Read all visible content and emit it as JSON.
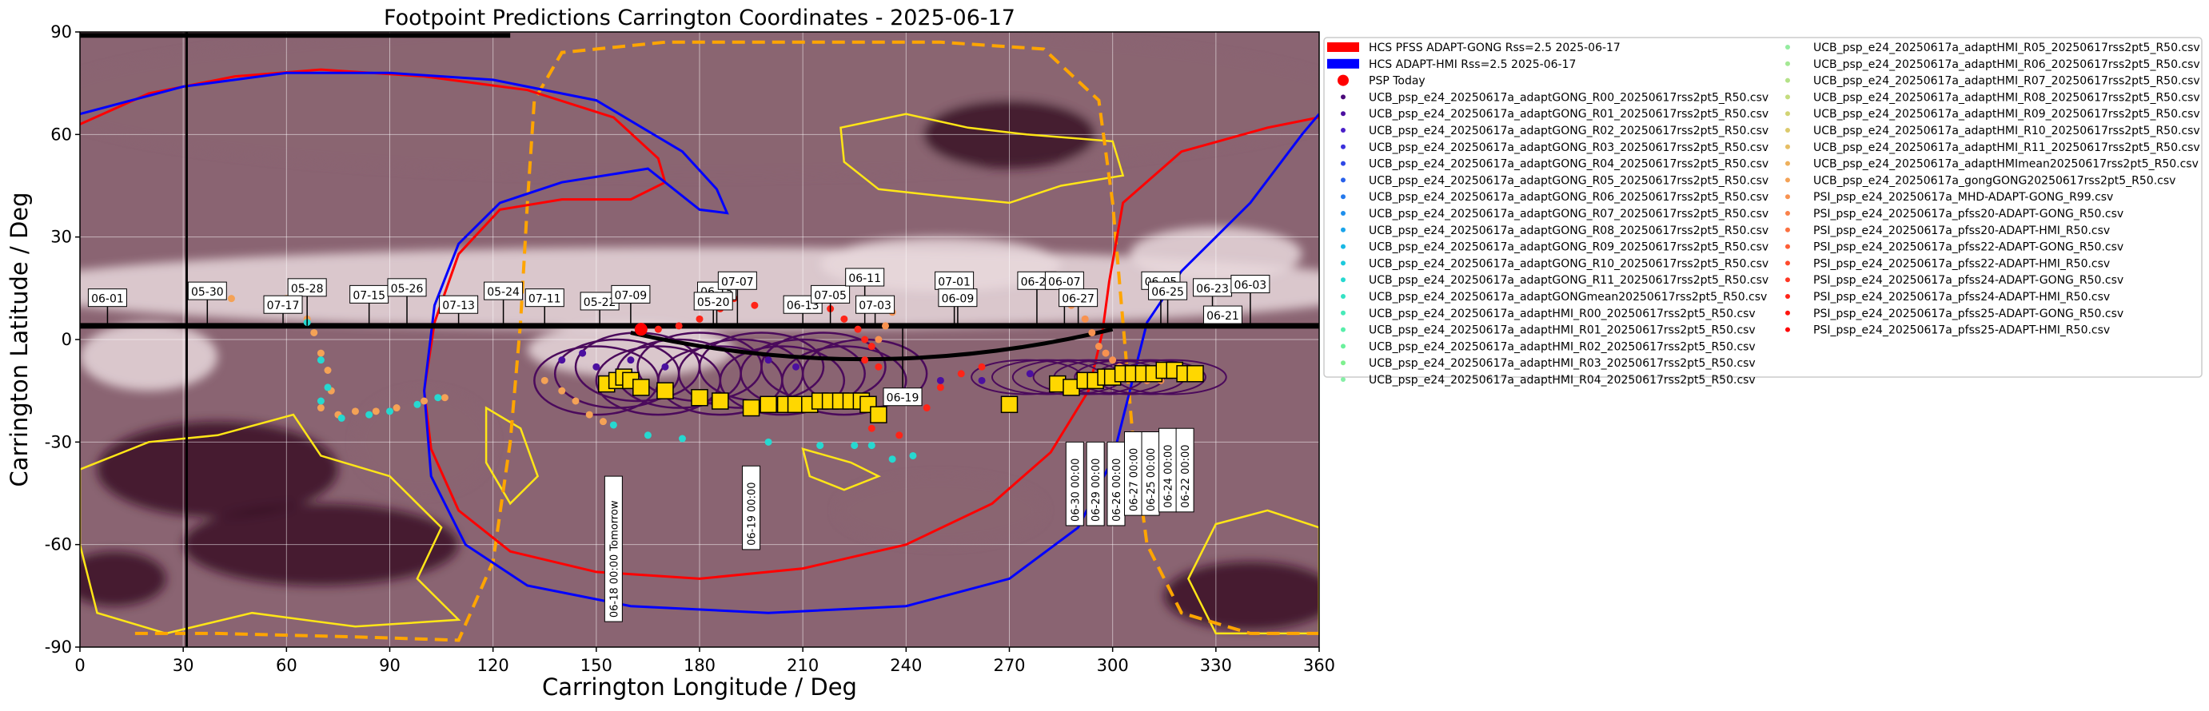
{
  "chart_data": {
    "type": "scatter",
    "title": "Footpoint Predictions Carrington Coordinates - 2025-06-17",
    "xlabel": "Carrington Longitude / Deg",
    "ylabel": "Carrington Latitude / Deg",
    "xlim": [
      0,
      360
    ],
    "ylim": [
      -90,
      90
    ],
    "xticks": [
      0,
      30,
      60,
      90,
      120,
      150,
      180,
      210,
      240,
      270,
      300,
      330,
      360
    ],
    "yticks": [
      -90,
      -60,
      -30,
      0,
      30,
      60,
      90
    ],
    "grid": true,
    "legend_position": "outside-right",
    "colors": {
      "background_dark": "#3a0f24",
      "background_mid": "#8a6472",
      "background_light": "#e8d8dc",
      "contour": "#ffe617",
      "hcs_gong": "#ff0000",
      "hcs_hmi": "#0000ff",
      "psp_today": "#ff0000",
      "trajectory": "#000000",
      "orbit_dashed": "#ffa500",
      "model_loops": "#4b0a5c",
      "markers": "#ffd700"
    },
    "psp_today": {
      "lon": 163,
      "lat": 3
    },
    "track_latitude": 4,
    "hcs_gong_line": [
      [
        0,
        63
      ],
      [
        20,
        72
      ],
      [
        45,
        77
      ],
      [
        70,
        79
      ],
      [
        100,
        77
      ],
      [
        130,
        73
      ],
      [
        155,
        65
      ],
      [
        168,
        53
      ],
      [
        170,
        46
      ],
      [
        160,
        41
      ],
      [
        140,
        41
      ],
      [
        122,
        38
      ],
      [
        110,
        25
      ],
      [
        103,
        5
      ],
      [
        100,
        -15
      ],
      [
        102,
        -32
      ],
      [
        110,
        -50
      ],
      [
        125,
        -62
      ],
      [
        150,
        -68
      ],
      [
        180,
        -70
      ],
      [
        210,
        -67
      ],
      [
        240,
        -60
      ],
      [
        265,
        -48
      ],
      [
        282,
        -33
      ],
      [
        293,
        -15
      ],
      [
        297,
        2
      ],
      [
        299,
        17
      ],
      [
        303,
        40
      ],
      [
        320,
        55
      ],
      [
        345,
        62
      ],
      [
        360,
        65
      ]
    ],
    "hcs_hmi_line": [
      [
        0,
        66
      ],
      [
        30,
        74
      ],
      [
        60,
        78
      ],
      [
        90,
        78
      ],
      [
        120,
        76
      ],
      [
        150,
        70
      ],
      [
        175,
        55
      ],
      [
        185,
        44
      ],
      [
        188,
        37
      ],
      [
        180,
        38
      ],
      [
        165,
        50
      ],
      [
        140,
        46
      ],
      [
        122,
        40
      ],
      [
        110,
        28
      ],
      [
        103,
        10
      ],
      [
        100,
        -15
      ],
      [
        102,
        -40
      ],
      [
        112,
        -60
      ],
      [
        130,
        -72
      ],
      [
        160,
        -78
      ],
      [
        200,
        -80
      ],
      [
        240,
        -78
      ],
      [
        270,
        -70
      ],
      [
        290,
        -55
      ],
      [
        300,
        -35
      ],
      [
        305,
        -15
      ],
      [
        310,
        5
      ],
      [
        320,
        20
      ],
      [
        340,
        40
      ],
      [
        355,
        60
      ],
      [
        360,
        66
      ]
    ],
    "orbit_dashed_line": [
      [
        16,
        -86
      ],
      [
        40,
        -86
      ],
      [
        80,
        -87
      ],
      [
        110,
        -88
      ],
      [
        120,
        -65
      ],
      [
        125,
        -30
      ],
      [
        128,
        5
      ],
      [
        130,
        40
      ],
      [
        132,
        70
      ],
      [
        140,
        84
      ],
      [
        170,
        87
      ],
      [
        210,
        87
      ],
      [
        250,
        87
      ],
      [
        280,
        85
      ],
      [
        296,
        70
      ],
      [
        300,
        40
      ],
      [
        303,
        5
      ],
      [
        306,
        -30
      ],
      [
        310,
        -60
      ],
      [
        320,
        -80
      ],
      [
        340,
        -86
      ],
      [
        360,
        -86
      ]
    ],
    "date_labels_top": [
      {
        "lon": 8,
        "lat": 12,
        "text": "06-01"
      },
      {
        "lon": 37,
        "lat": 14,
        "text": "05-30"
      },
      {
        "lon": 66,
        "lat": 15,
        "text": "05-28"
      },
      {
        "lon": 59,
        "lat": 10,
        "text": "07-17"
      },
      {
        "lon": 84,
        "lat": 13,
        "text": "07-15"
      },
      {
        "lon": 95,
        "lat": 15,
        "text": "05-26"
      },
      {
        "lon": 110,
        "lat": 10,
        "text": "07-13"
      },
      {
        "lon": 123,
        "lat": 14,
        "text": "05-24"
      },
      {
        "lon": 135,
        "lat": 12,
        "text": "07-11"
      },
      {
        "lon": 151,
        "lat": 11,
        "text": "05-22"
      },
      {
        "lon": 160,
        "lat": 13,
        "text": "07-09"
      },
      {
        "lon": 185,
        "lat": 14,
        "text": "06-15"
      },
      {
        "lon": 184,
        "lat": 11,
        "text": "05-20"
      },
      {
        "lon": 191,
        "lat": 17,
        "text": "07-07"
      },
      {
        "lon": 210,
        "lat": 10,
        "text": "06-13"
      },
      {
        "lon": 218,
        "lat": 13,
        "text": "07-05"
      },
      {
        "lon": 228,
        "lat": 18,
        "text": "06-11"
      },
      {
        "lon": 231,
        "lat": 10,
        "text": "07-03"
      },
      {
        "lon": 254,
        "lat": 17,
        "text": "07-01"
      },
      {
        "lon": 255,
        "lat": 12,
        "text": "06-09"
      },
      {
        "lon": 278,
        "lat": 17,
        "text": "06-29"
      },
      {
        "lon": 286,
        "lat": 17,
        "text": "06-07"
      },
      {
        "lon": 290,
        "lat": 12,
        "text": "06-27"
      },
      {
        "lon": 314,
        "lat": 17,
        "text": "06-05"
      },
      {
        "lon": 316,
        "lat": 14,
        "text": "06-25"
      },
      {
        "lon": 329,
        "lat": 15,
        "text": "06-23"
      },
      {
        "lon": 340,
        "lat": 16,
        "text": "06-03"
      },
      {
        "lon": 332,
        "lat": 7,
        "text": "06-21"
      },
      {
        "lon": 239,
        "lat": -17,
        "text": "06-19"
      }
    ],
    "date_labels_vertical": [
      {
        "lon": 155,
        "lat": -40,
        "text": "06-18 00:00 Tomorrow"
      },
      {
        "lon": 195,
        "lat": -37,
        "text": "06-19 00:00"
      },
      {
        "lon": 289,
        "lat": -30,
        "text": "06-30 00:00"
      },
      {
        "lon": 295,
        "lat": -30,
        "text": "06-29 00:00"
      },
      {
        "lon": 301,
        "lat": -30,
        "text": "06-26 00:00"
      },
      {
        "lon": 306,
        "lat": -27,
        "text": "06-27 00:00"
      },
      {
        "lon": 311,
        "lat": -27,
        "text": "06-25 00:00"
      },
      {
        "lon": 316,
        "lat": -26,
        "text": "06-24 00:00"
      },
      {
        "lon": 321,
        "lat": -26,
        "text": "06-22 00:00"
      }
    ],
    "series": [
      {
        "name": "HCS PFSS ADAPT-GONG Rss=2.5 2025-06-17",
        "color": "#ff0000",
        "kind": "line"
      },
      {
        "name": "HCS ADAPT-HMI Rss=2.5 2025-06-17",
        "color": "#0000ff",
        "kind": "line"
      },
      {
        "name": "PSP Today",
        "color": "#ff0000",
        "kind": "bigdot"
      },
      {
        "name": "UCB_psp_e24_20250617a_adaptGONG_R00_20250617rss2pt5_R50.csv",
        "color": "#4a0a7a",
        "kind": "dot"
      },
      {
        "name": "UCB_psp_e24_20250617a_adaptGONG_R01_20250617rss2pt5_R50.csv",
        "color": "#4b0fa0",
        "kind": "dot"
      },
      {
        "name": "UCB_psp_e24_20250617a_adaptGONG_R02_20250617rss2pt5_R50.csv",
        "color": "#4a1fc8",
        "kind": "dot"
      },
      {
        "name": "UCB_psp_e24_20250617a_adaptGONG_R03_20250617rss2pt5_R50.csv",
        "color": "#3a30dc",
        "kind": "dot"
      },
      {
        "name": "UCB_psp_e24_20250617a_adaptGONG_R04_20250617rss2pt5_R50.csv",
        "color": "#2e48e6",
        "kind": "dot"
      },
      {
        "name": "UCB_psp_e24_20250617a_adaptGONG_R05_20250617rss2pt5_R50.csv",
        "color": "#2860ea",
        "kind": "dot"
      },
      {
        "name": "UCB_psp_e24_20250617a_adaptGONG_R06_20250617rss2pt5_R50.csv",
        "color": "#2478ec",
        "kind": "dot"
      },
      {
        "name": "UCB_psp_e24_20250617a_adaptGONG_R07_20250617rss2pt5_R50.csv",
        "color": "#1e8fec",
        "kind": "dot"
      },
      {
        "name": "UCB_psp_e24_20250617a_adaptGONG_R08_20250617rss2pt5_R50.csv",
        "color": "#1aa4ea",
        "kind": "dot"
      },
      {
        "name": "UCB_psp_e24_20250617a_adaptGONG_R09_20250617rss2pt5_R50.csv",
        "color": "#18b8e4",
        "kind": "dot"
      },
      {
        "name": "UCB_psp_e24_20250617a_adaptGONG_R10_20250617rss2pt5_R50.csv",
        "color": "#1ccadc",
        "kind": "dot"
      },
      {
        "name": "UCB_psp_e24_20250617a_adaptGONG_R11_20250617rss2pt5_R50.csv",
        "color": "#26d8d0",
        "kind": "dot"
      },
      {
        "name": "UCB_psp_e24_20250617a_adaptGONGmean20250617rss2pt5_R50.csv",
        "color": "#34e2c4",
        "kind": "dot"
      },
      {
        "name": "UCB_psp_e24_20250617a_adaptHMI_R00_20250617rss2pt5_R50.csv",
        "color": "#46eab8",
        "kind": "dot"
      },
      {
        "name": "UCB_psp_e24_20250617a_adaptHMI_R01_20250617rss2pt5_R50.csv",
        "color": "#58eeaa",
        "kind": "dot"
      },
      {
        "name": "UCB_psp_e24_20250617a_adaptHMI_R02_20250617rss2pt5_R50.csv",
        "color": "#6af09c",
        "kind": "dot"
      },
      {
        "name": "UCB_psp_e24_20250617a_adaptHMI_R03_20250617rss2pt5_R50.csv",
        "color": "#7ef08e",
        "kind": "dot"
      },
      {
        "name": "UCB_psp_e24_20250617a_adaptHMI_R04_20250617rss2pt5_R50.csv",
        "color": "#86eea6",
        "kind": "dot"
      },
      {
        "name": "UCB_psp_e24_20250617a_adaptHMI_R05_20250617rss2pt5_R50.csv",
        "color": "#94eca0",
        "kind": "dot"
      },
      {
        "name": "UCB_psp_e24_20250617a_adaptHMI_R06_20250617rss2pt5_R50.csv",
        "color": "#a4e894",
        "kind": "dot"
      },
      {
        "name": "UCB_psp_e24_20250617a_adaptHMI_R07_20250617rss2pt5_R50.csv",
        "color": "#b4e288",
        "kind": "dot"
      },
      {
        "name": "UCB_psp_e24_20250617a_adaptHMI_R08_20250617rss2pt5_R50.csv",
        "color": "#c4dc7e",
        "kind": "dot"
      },
      {
        "name": "UCB_psp_e24_20250617a_adaptHMI_R09_20250617rss2pt5_R50.csv",
        "color": "#d2d474",
        "kind": "dot"
      },
      {
        "name": "UCB_psp_e24_20250617a_adaptHMI_R10_20250617rss2pt5_R50.csv",
        "color": "#dcca6c",
        "kind": "dot"
      },
      {
        "name": "UCB_psp_e24_20250617a_adaptHMI_R11_20250617rss2pt5_R50.csv",
        "color": "#e6be64",
        "kind": "dot"
      },
      {
        "name": "UCB_psp_e24_20250617a_adaptHMImean20250617rss2pt5_R50.csv",
        "color": "#eeb05c",
        "kind": "dot"
      },
      {
        "name": "UCB_psp_e24_20250617a_gongGONG20250617rss2pt5_R50.csv",
        "color": "#f4a256",
        "kind": "dot"
      },
      {
        "name": "PSI_psp_e24_20250617a_MHD-ADAPT-GONG_R99.csv",
        "color": "#f89250",
        "kind": "dot"
      },
      {
        "name": "PSI_psp_e24_20250617a_pfss20-ADAPT-GONG_R50.csv",
        "color": "#fa824a",
        "kind": "dot"
      },
      {
        "name": "PSI_psp_e24_20250617a_pfss20-ADAPT-HMI_R50.csv",
        "color": "#fc7040",
        "kind": "dot"
      },
      {
        "name": "PSI_psp_e24_20250617a_pfss22-ADAPT-GONG_R50.csv",
        "color": "#fe5e36",
        "kind": "dot"
      },
      {
        "name": "PSI_psp_e24_20250617a_pfss22-ADAPT-HMI_R50.csv",
        "color": "#ff4a2c",
        "kind": "dot"
      },
      {
        "name": "PSI_psp_e24_20250617a_pfss24-ADAPT-GONG_R50.csv",
        "color": "#ff3622",
        "kind": "dot"
      },
      {
        "name": "PSI_psp_e24_20250617a_pfss24-ADAPT-HMI_R50.csv",
        "color": "#ff2418",
        "kind": "dot"
      },
      {
        "name": "PSI_psp_e24_20250617a_pfss25-ADAPT-GONG_R50.csv",
        "color": "#ff140e",
        "kind": "dot"
      },
      {
        "name": "PSI_psp_e24_20250617a_pfss25-ADAPT-HMI_R50.csv",
        "color": "#ff0606",
        "kind": "dot"
      }
    ],
    "footpoint_squares": [
      [
        153,
        -13
      ],
      [
        156,
        -12
      ],
      [
        158,
        -11
      ],
      [
        160,
        -12
      ],
      [
        163,
        -14
      ],
      [
        170,
        -15
      ],
      [
        180,
        -17
      ],
      [
        186,
        -18
      ],
      [
        195,
        -20
      ],
      [
        200,
        -19
      ],
      [
        205,
        -19
      ],
      [
        208,
        -19
      ],
      [
        212,
        -19
      ],
      [
        215,
        -18
      ],
      [
        218,
        -18
      ],
      [
        221,
        -18
      ],
      [
        224,
        -18
      ],
      [
        227,
        -18
      ],
      [
        229,
        -19
      ],
      [
        232,
        -22
      ],
      [
        270,
        -19
      ],
      [
        284,
        -13
      ],
      [
        288,
        -14
      ],
      [
        292,
        -12
      ],
      [
        295,
        -12
      ],
      [
        298,
        -11
      ],
      [
        300,
        -11
      ],
      [
        303,
        -10
      ],
      [
        306,
        -10
      ],
      [
        309,
        -10
      ],
      [
        312,
        -10
      ],
      [
        315,
        -9
      ],
      [
        318,
        -9
      ],
      [
        321,
        -10
      ],
      [
        324,
        -10
      ]
    ],
    "footpoint_clusters": [
      {
        "color": "#f4a256",
        "points": [
          [
            36,
            15
          ],
          [
            40,
            13
          ],
          [
            44,
            12
          ],
          [
            60,
            12
          ],
          [
            63,
            10
          ],
          [
            66,
            6
          ],
          [
            68,
            2
          ],
          [
            70,
            -4
          ],
          [
            72,
            -9
          ],
          [
            73,
            -15
          ],
          [
            70,
            -20
          ],
          [
            75,
            -22
          ],
          [
            80,
            -21
          ],
          [
            86,
            -21
          ],
          [
            92,
            -20
          ],
          [
            100,
            -18
          ],
          [
            106,
            -17
          ],
          [
            135,
            -12
          ],
          [
            140,
            -15
          ],
          [
            144,
            -18
          ],
          [
            148,
            -22
          ],
          [
            152,
            -24
          ]
        ]
      },
      {
        "color": "#26d8d0",
        "points": [
          [
            66,
            5
          ],
          [
            70,
            -6
          ],
          [
            72,
            -14
          ],
          [
            70,
            -18
          ],
          [
            76,
            -23
          ],
          [
            84,
            -22
          ],
          [
            90,
            -21
          ],
          [
            98,
            -19
          ],
          [
            104,
            -17
          ],
          [
            155,
            -25
          ],
          [
            165,
            -28
          ],
          [
            175,
            -29
          ],
          [
            200,
            -30
          ],
          [
            215,
            -31
          ],
          [
            225,
            -31
          ],
          [
            230,
            -31
          ],
          [
            236,
            -35
          ],
          [
            242,
            -34
          ]
        ]
      },
      {
        "color": "#ff2418",
        "points": [
          [
            168,
            3
          ],
          [
            174,
            4
          ],
          [
            180,
            6
          ],
          [
            186,
            9
          ],
          [
            190,
            12
          ],
          [
            196,
            10
          ],
          [
            214,
            12
          ],
          [
            218,
            9
          ],
          [
            222,
            6
          ],
          [
            226,
            3
          ],
          [
            228,
            0
          ],
          [
            230,
            -2
          ],
          [
            228,
            -6
          ],
          [
            232,
            -8
          ],
          [
            226,
            -18
          ],
          [
            230,
            -26
          ],
          [
            238,
            -28
          ],
          [
            246,
            -20
          ],
          [
            250,
            -14
          ],
          [
            256,
            -10
          ],
          [
            262,
            -8
          ]
        ]
      },
      {
        "color": "#f89250",
        "points": [
          [
            288,
            10
          ],
          [
            292,
            6
          ],
          [
            294,
            2
          ],
          [
            296,
            -2
          ],
          [
            298,
            -4
          ],
          [
            300,
            -6
          ],
          [
            302,
            -8
          ],
          [
            306,
            -10
          ],
          [
            310,
            -12
          ],
          [
            314,
            -12
          ],
          [
            236,
            8
          ],
          [
            234,
            4
          ],
          [
            232,
            0
          ]
        ]
      },
      {
        "color": "#4b0fa0",
        "points": [
          [
            140,
            -6
          ],
          [
            146,
            -4
          ],
          [
            150,
            -8
          ],
          [
            160,
            -6
          ],
          [
            170,
            -8
          ],
          [
            200,
            -6
          ],
          [
            208,
            -8
          ],
          [
            250,
            -12
          ],
          [
            262,
            -12
          ],
          [
            276,
            -10
          ]
        ]
      }
    ]
  }
}
